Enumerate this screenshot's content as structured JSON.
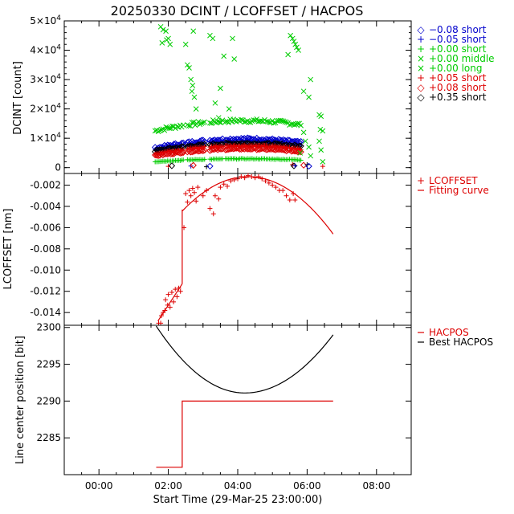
{
  "figure": {
    "title": "20250330 DCINT / LCOFFSET / HACPOS",
    "xlabel": "Start Time (29-Mar-25 23:00:00)",
    "xticks": [
      "00:00",
      "02:00",
      "04:00",
      "06:00",
      "08:00"
    ]
  },
  "chart_data": [
    {
      "type": "scatter",
      "id": "dcint",
      "ylabel": "DCINT [count]",
      "xlim_hours": [
        -1.0,
        9.0
      ],
      "ylim": [
        -2000,
        50000
      ],
      "yticks": [
        {
          "value": 0,
          "label": "0"
        },
        {
          "value": 10000,
          "label": "1×10",
          "exp": "4"
        },
        {
          "value": 20000,
          "label": "2×10",
          "exp": "4"
        },
        {
          "value": 30000,
          "label": "3×10",
          "exp": "4"
        },
        {
          "value": 40000,
          "label": "4×10",
          "exp": "4"
        },
        {
          "value": 50000,
          "label": "5×10",
          "exp": "4"
        }
      ],
      "legend": [
        {
          "symbol": "◇",
          "label": "−0.08 short",
          "color": "#0000cc"
        },
        {
          "symbol": "+",
          "label": "−0.05 short",
          "color": "#0000cc"
        },
        {
          "symbol": "+",
          "label": "+0.00 short",
          "color": "#00cc00"
        },
        {
          "symbol": "×",
          "label": "+0.00 middle",
          "color": "#00cc00"
        },
        {
          "symbol": "×",
          "label": "+0.00 long",
          "color": "#00cc00"
        },
        {
          "symbol": "+",
          "label": "+0.05 short",
          "color": "#dd0000"
        },
        {
          "symbol": "◇",
          "label": "+0.08 short",
          "color": "#dd0000"
        },
        {
          "symbol": "◇",
          "label": "+0.35 short",
          "color": "#000000"
        }
      ],
      "series": [
        {
          "name": "+0.00 short",
          "marker": "cross",
          "color": "#00cc00",
          "peak": 16000,
          "edge": 12500
        },
        {
          "name": "-0.08 short",
          "marker": "diamond",
          "color": "#0000cc",
          "peak": 9800,
          "edge": 6500
        },
        {
          "name": "-0.05 short",
          "marker": "plus",
          "color": "#0000cc",
          "peak": 9000,
          "edge": 6000
        },
        {
          "name": "+0.35 short",
          "marker": "diamond",
          "color": "#000000",
          "peak": 8200,
          "edge": 5600
        },
        {
          "name": "+0.05 short",
          "marker": "plus",
          "color": "#dd0000",
          "peak": 7500,
          "edge": 4800
        },
        {
          "name": "+0.08 short",
          "marker": "diamond",
          "color": "#dd0000",
          "peak": 6400,
          "edge": 4000
        },
        {
          "name": "+0.00 middle/long baseline",
          "marker": "plus",
          "color": "#00cc00",
          "peak": 3000,
          "edge": 2000
        }
      ],
      "outliers": [
        {
          "t": 1.78,
          "v": 48000
        },
        {
          "t": 1.85,
          "v": 47000
        },
        {
          "t": 1.93,
          "v": 46500
        },
        {
          "t": 2.0,
          "v": 44000
        },
        {
          "t": 1.82,
          "v": 42500
        },
        {
          "t": 1.95,
          "v": 43500
        },
        {
          "t": 2.05,
          "v": 42000
        },
        {
          "t": 2.5,
          "v": 42000
        },
        {
          "t": 2.55,
          "v": 35000
        },
        {
          "t": 2.6,
          "v": 34000
        },
        {
          "t": 2.65,
          "v": 30000
        },
        {
          "t": 2.7,
          "v": 28000
        },
        {
          "t": 2.75,
          "v": 24000
        },
        {
          "t": 2.8,
          "v": 20000
        },
        {
          "t": 2.68,
          "v": 26000
        },
        {
          "t": 2.72,
          "v": 46500
        },
        {
          "t": 3.2,
          "v": 45000
        },
        {
          "t": 3.28,
          "v": 44000
        },
        {
          "t": 3.35,
          "v": 22000
        },
        {
          "t": 3.45,
          "v": 17000
        },
        {
          "t": 3.6,
          "v": 38000
        },
        {
          "t": 3.75,
          "v": 20000
        },
        {
          "t": 3.85,
          "v": 44000
        },
        {
          "t": 3.9,
          "v": 37000
        },
        {
          "t": 3.5,
          "v": 27000
        },
        {
          "t": 5.52,
          "v": 45000
        },
        {
          "t": 5.58,
          "v": 44000
        },
        {
          "t": 5.62,
          "v": 43000
        },
        {
          "t": 5.66,
          "v": 42000
        },
        {
          "t": 5.7,
          "v": 41000
        },
        {
          "t": 5.75,
          "v": 40000
        },
        {
          "t": 5.9,
          "v": 26000
        },
        {
          "t": 6.05,
          "v": 24000
        },
        {
          "t": 6.1,
          "v": 30000
        },
        {
          "t": 6.35,
          "v": 18000
        },
        {
          "t": 6.4,
          "v": 17500
        },
        {
          "t": 6.38,
          "v": 13000
        },
        {
          "t": 6.45,
          "v": 12500
        },
        {
          "t": 5.45,
          "v": 38500
        }
      ]
    },
    {
      "type": "line",
      "id": "lcoffset",
      "ylabel": "LCOFFSET [nm]",
      "xlim_hours": [
        -1.0,
        9.0
      ],
      "ylim": [
        -0.0152,
        -0.0009
      ],
      "yticks": [
        "-0.002",
        "-0.004",
        "-0.006",
        "-0.008",
        "-0.010",
        "-0.012",
        "-0.014"
      ],
      "ytick_values": [
        -0.002,
        -0.004,
        -0.006,
        -0.008,
        -0.01,
        -0.012,
        -0.014
      ],
      "legend": [
        {
          "symbol": "+",
          "label": "LCOFFSET",
          "color": "#dd0000"
        },
        {
          "symbol": "—",
          "label": "Fitting curve",
          "color": "#dd0000"
        }
      ],
      "fit_pre": [
        [
          1.7,
          -0.0148
        ],
        [
          2.4,
          -0.0113
        ]
      ],
      "fit_jump": [
        [
          2.4,
          -0.0113
        ],
        [
          2.4,
          -0.0043
        ]
      ],
      "fit_curve": {
        "t_start": 2.4,
        "t_end": 6.75,
        "vertex_t": 4.3,
        "vertex_v": -0.0012,
        "value_at_end": -0.0066
      },
      "points": [
        [
          1.72,
          -0.015
        ],
        [
          1.78,
          -0.015
        ],
        [
          1.8,
          -0.0143
        ],
        [
          1.85,
          -0.014
        ],
        [
          1.9,
          -0.0138
        ],
        [
          1.92,
          -0.0128
        ],
        [
          1.98,
          -0.0133
        ],
        [
          2.0,
          -0.0123
        ],
        [
          2.05,
          -0.0135
        ],
        [
          2.1,
          -0.0121
        ],
        [
          2.15,
          -0.013
        ],
        [
          2.2,
          -0.0118
        ],
        [
          2.25,
          -0.0125
        ],
        [
          2.3,
          -0.0117
        ],
        [
          2.35,
          -0.012
        ],
        [
          2.45,
          -0.006
        ],
        [
          2.5,
          -0.0028
        ],
        [
          2.55,
          -0.0036
        ],
        [
          2.6,
          -0.0025
        ],
        [
          2.65,
          -0.003
        ],
        [
          2.7,
          -0.0023
        ],
        [
          2.75,
          -0.0027
        ],
        [
          2.8,
          -0.0035
        ],
        [
          2.85,
          -0.0022
        ],
        [
          3.0,
          -0.003
        ],
        [
          3.1,
          -0.0025
        ],
        [
          3.2,
          -0.0042
        ],
        [
          3.3,
          -0.0047
        ],
        [
          3.35,
          -0.003
        ],
        [
          3.45,
          -0.0033
        ],
        [
          3.5,
          -0.0022
        ],
        [
          3.6,
          -0.0019
        ],
        [
          3.7,
          -0.0021
        ],
        [
          3.8,
          -0.0016
        ],
        [
          3.9,
          -0.0015
        ],
        [
          4.0,
          -0.0014
        ],
        [
          4.1,
          -0.0012
        ],
        [
          4.2,
          -0.0013
        ],
        [
          4.3,
          -0.0011
        ],
        [
          4.4,
          -0.0012
        ],
        [
          4.5,
          -0.0013
        ],
        [
          4.6,
          -0.0012
        ],
        [
          4.7,
          -0.0014
        ],
        [
          4.8,
          -0.0016
        ],
        [
          4.9,
          -0.0018
        ],
        [
          5.0,
          -0.002
        ],
        [
          5.1,
          -0.0022
        ],
        [
          5.2,
          -0.0025
        ],
        [
          5.3,
          -0.0025
        ],
        [
          5.4,
          -0.003
        ],
        [
          5.5,
          -0.0034
        ],
        [
          5.6,
          -0.0028
        ],
        [
          5.65,
          -0.0034
        ]
      ]
    },
    {
      "type": "line",
      "id": "hacpos",
      "ylabel": "Line center position [bit]",
      "xlim_hours": [
        -1.0,
        9.0
      ],
      "ylim": [
        2280.0,
        2300.3
      ],
      "yticks": [
        "2300",
        "2295",
        "2290",
        "2285"
      ],
      "ytick_values": [
        2300,
        2295,
        2290,
        2285
      ],
      "legend": [
        {
          "symbol": "—",
          "label": "HACPOS",
          "color": "#dd0000"
        },
        {
          "symbol": "—",
          "label": "Best HACPOS",
          "color": "#000000"
        }
      ],
      "hacpos_steps": [
        [
          1.65,
          2281
        ],
        [
          2.4,
          2281
        ],
        [
          2.4,
          2290
        ],
        [
          6.75,
          2290
        ]
      ],
      "best_hacpos": {
        "t_start": 1.65,
        "t_end": 6.75,
        "vertex_t": 4.2,
        "vertex_v": 2291.1,
        "value_at_start": 2300.2,
        "value_at_end": 2299.0
      }
    }
  ]
}
